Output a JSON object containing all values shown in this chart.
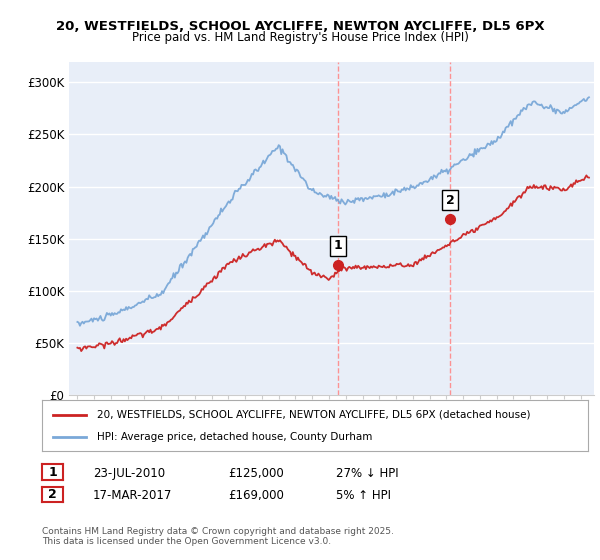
{
  "title": "20, WESTFIELDS, SCHOOL AYCLIFFE, NEWTON AYCLIFFE, DL5 6PX",
  "subtitle": "Price paid vs. HM Land Registry's House Price Index (HPI)",
  "ylim": [
    0,
    320000
  ],
  "yticks": [
    0,
    50000,
    100000,
    150000,
    200000,
    250000,
    300000
  ],
  "ytick_labels": [
    "£0",
    "£50K",
    "£100K",
    "£150K",
    "£200K",
    "£250K",
    "£300K"
  ],
  "background_color": "#ffffff",
  "plot_background": "#e8eef8",
  "grid_color": "#ffffff",
  "sale1_date": 2010.55,
  "sale1_price": 125000,
  "sale2_date": 2017.21,
  "sale2_price": 169000,
  "vline_color": "#ff8888",
  "hpi_color": "#7aa8d8",
  "price_color": "#cc2222",
  "legend_label_price": "20, WESTFIELDS, SCHOOL AYCLIFFE, NEWTON AYCLIFFE, DL5 6PX (detached house)",
  "legend_label_hpi": "HPI: Average price, detached house, County Durham",
  "footer": "Contains HM Land Registry data © Crown copyright and database right 2025.\nThis data is licensed under the Open Government Licence v3.0.",
  "table_rows": [
    {
      "num": "1",
      "date": "23-JUL-2010",
      "price": "£125,000",
      "hpi": "27% ↓ HPI"
    },
    {
      "num": "2",
      "date": "17-MAR-2017",
      "price": "£169,000",
      "hpi": "5% ↑ HPI"
    }
  ],
  "xmin": 1994.5,
  "xmax": 2025.8
}
